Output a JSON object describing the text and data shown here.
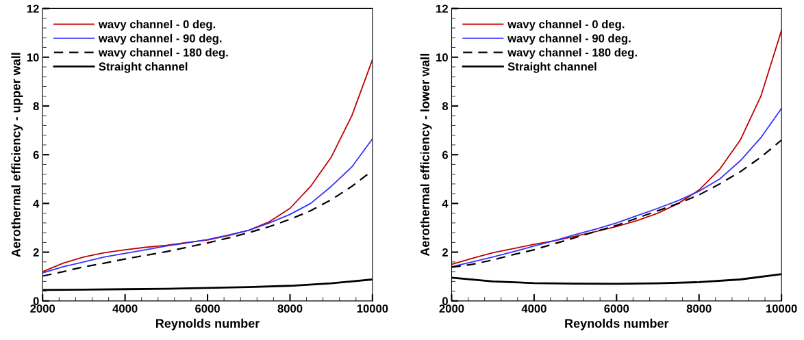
{
  "chart_data": [
    {
      "type": "line",
      "xlabel": "Reynolds number",
      "ylabel": "Aerothermal efficiency - upper wall",
      "xlim": [
        2000,
        10000
      ],
      "ylim": [
        0,
        12
      ],
      "xticks": [
        2000,
        {
          "value": 2400,
          "label": null
        },
        {
          "value": 2800,
          "label": null
        },
        {
          "value": 3200,
          "label": null
        },
        {
          "value": 3600,
          "label": null
        },
        4000,
        {
          "value": 4400,
          "label": null
        },
        {
          "value": 4800,
          "label": null
        },
        {
          "value": 5200,
          "label": null
        },
        {
          "value": 5600,
          "label": null
        },
        6000,
        {
          "value": 6400,
          "label": null
        },
        {
          "value": 6800,
          "label": null
        },
        {
          "value": 7200,
          "label": null
        },
        {
          "value": 7600,
          "label": null
        },
        8000,
        {
          "value": 8400,
          "label": null
        },
        {
          "value": 8800,
          "label": null
        },
        {
          "value": 9200,
          "label": null
        },
        {
          "value": 9600,
          "label": null
        },
        10000
      ],
      "yticks": [
        0,
        {
          "value": 0.4,
          "label": null
        },
        {
          "value": 0.8,
          "label": null
        },
        {
          "value": 1.2,
          "label": null
        },
        {
          "value": 1.6,
          "label": null
        },
        2,
        {
          "value": 2.4,
          "label": null
        },
        {
          "value": 2.8,
          "label": null
        },
        {
          "value": 3.2,
          "label": null
        },
        {
          "value": 3.6,
          "label": null
        },
        4,
        {
          "value": 4.4,
          "label": null
        },
        {
          "value": 4.8,
          "label": null
        },
        {
          "value": 5.2,
          "label": null
        },
        {
          "value": 5.6,
          "label": null
        },
        6,
        {
          "value": 6.4,
          "label": null
        },
        {
          "value": 6.8,
          "label": null
        },
        {
          "value": 7.2,
          "label": null
        },
        {
          "value": 7.6,
          "label": null
        },
        8,
        {
          "value": 8.4,
          "label": null
        },
        {
          "value": 8.8,
          "label": null
        },
        {
          "value": 9.2,
          "label": null
        },
        {
          "value": 9.6,
          "label": null
        },
        10,
        {
          "value": 10.4,
          "label": null
        },
        {
          "value": 10.8,
          "label": null
        },
        {
          "value": 11.2,
          "label": null
        },
        {
          "value": 11.6,
          "label": null
        },
        12
      ],
      "legend": "top left",
      "grid": false,
      "x": [
        2000,
        2500,
        3000,
        3500,
        4000,
        4500,
        5000,
        5500,
        6000,
        6500,
        7000,
        7500,
        8000,
        8500,
        9000,
        9500,
        10000
      ],
      "series": [
        {
          "name": "wavy channel - 0 deg.",
          "color": "#c00000",
          "line_style": "solid",
          "values": [
            1.2,
            1.55,
            1.8,
            1.98,
            2.1,
            2.2,
            2.28,
            2.4,
            2.5,
            2.68,
            2.9,
            3.25,
            3.8,
            4.7,
            5.9,
            7.6,
            9.9
          ]
        },
        {
          "name": "wavy channel - 90 deg.",
          "color": "#3333ff",
          "line_style": "solid",
          "values": [
            1.15,
            1.4,
            1.6,
            1.8,
            1.95,
            2.1,
            2.25,
            2.38,
            2.52,
            2.7,
            2.9,
            3.2,
            3.55,
            4.0,
            4.7,
            5.5,
            6.65
          ]
        },
        {
          "name": "wavy channel - 180 deg.",
          "color": "#000000",
          "line_style": "dashed",
          "values": [
            1.02,
            1.2,
            1.4,
            1.55,
            1.72,
            1.87,
            2.02,
            2.2,
            2.38,
            2.58,
            2.8,
            3.05,
            3.35,
            3.7,
            4.15,
            4.7,
            5.35
          ]
        },
        {
          "name": "Straight channel",
          "color": "#000000",
          "line_style": "solid",
          "x": [
            2000,
            3000,
            4000,
            5000,
            6000,
            7000,
            8000,
            9000,
            10000
          ],
          "values": [
            0.45,
            0.46,
            0.48,
            0.5,
            0.53,
            0.57,
            0.62,
            0.72,
            0.88
          ]
        }
      ]
    },
    {
      "type": "line",
      "xlabel": "Reynolds number",
      "ylabel": "Aerothermal efficiency - lower wall",
      "xlim": [
        2000,
        10000
      ],
      "ylim": [
        0,
        12
      ],
      "xticks": [
        2000,
        {
          "value": 2400,
          "label": null
        },
        {
          "value": 2800,
          "label": null
        },
        {
          "value": 3200,
          "label": null
        },
        {
          "value": 3600,
          "label": null
        },
        4000,
        {
          "value": 4400,
          "label": null
        },
        {
          "value": 4800,
          "label": null
        },
        {
          "value": 5200,
          "label": null
        },
        {
          "value": 5600,
          "label": null
        },
        6000,
        {
          "value": 6400,
          "label": null
        },
        {
          "value": 6800,
          "label": null
        },
        {
          "value": 7200,
          "label": null
        },
        {
          "value": 7600,
          "label": null
        },
        8000,
        {
          "value": 8400,
          "label": null
        },
        {
          "value": 8800,
          "label": null
        },
        {
          "value": 9200,
          "label": null
        },
        {
          "value": 9600,
          "label": null
        },
        10000
      ],
      "yticks": [
        0,
        {
          "value": 0.4,
          "label": null
        },
        {
          "value": 0.8,
          "label": null
        },
        {
          "value": 1.2,
          "label": null
        },
        {
          "value": 1.6,
          "label": null
        },
        2,
        {
          "value": 2.4,
          "label": null
        },
        {
          "value": 2.8,
          "label": null
        },
        {
          "value": 3.2,
          "label": null
        },
        {
          "value": 3.6,
          "label": null
        },
        4,
        {
          "value": 4.4,
          "label": null
        },
        {
          "value": 4.8,
          "label": null
        },
        {
          "value": 5.2,
          "label": null
        },
        {
          "value": 5.6,
          "label": null
        },
        6,
        {
          "value": 6.4,
          "label": null
        },
        {
          "value": 6.8,
          "label": null
        },
        {
          "value": 7.2,
          "label": null
        },
        {
          "value": 7.6,
          "label": null
        },
        8,
        {
          "value": 8.4,
          "label": null
        },
        {
          "value": 8.8,
          "label": null
        },
        {
          "value": 9.2,
          "label": null
        },
        {
          "value": 9.6,
          "label": null
        },
        10,
        {
          "value": 10.4,
          "label": null
        },
        {
          "value": 10.8,
          "label": null
        },
        {
          "value": 11.2,
          "label": null
        },
        {
          "value": 11.6,
          "label": null
        },
        12
      ],
      "legend": "top left",
      "grid": false,
      "x": [
        2000,
        2500,
        3000,
        3500,
        4000,
        4500,
        5000,
        5500,
        6000,
        6500,
        7000,
        7500,
        8000,
        8500,
        9000,
        9500,
        10000
      ],
      "series": [
        {
          "name": "wavy channel - 0 deg.",
          "color": "#c00000",
          "line_style": "solid",
          "values": [
            1.5,
            1.75,
            1.98,
            2.15,
            2.32,
            2.47,
            2.65,
            2.85,
            3.05,
            3.3,
            3.6,
            4.0,
            4.55,
            5.4,
            6.6,
            8.4,
            11.1
          ]
        },
        {
          "name": "wavy channel - 90 deg.",
          "color": "#3333ff",
          "line_style": "solid",
          "values": [
            1.4,
            1.6,
            1.8,
            2.02,
            2.25,
            2.48,
            2.72,
            2.95,
            3.2,
            3.5,
            3.8,
            4.12,
            4.5,
            5.0,
            5.75,
            6.7,
            7.9
          ]
        },
        {
          "name": "wavy channel - 180 deg.",
          "color": "#000000",
          "line_style": "dashed",
          "values": [
            1.38,
            1.5,
            1.68,
            1.9,
            2.1,
            2.35,
            2.6,
            2.85,
            3.1,
            3.4,
            3.7,
            4.0,
            4.35,
            4.8,
            5.3,
            5.9,
            6.6
          ]
        },
        {
          "name": "Straight channel",
          "color": "#000000",
          "line_style": "solid",
          "x": [
            2000,
            3000,
            4000,
            5000,
            6000,
            7000,
            8000,
            9000,
            10000
          ],
          "values": [
            0.95,
            0.8,
            0.73,
            0.71,
            0.7,
            0.72,
            0.77,
            0.88,
            1.1
          ]
        }
      ]
    }
  ]
}
